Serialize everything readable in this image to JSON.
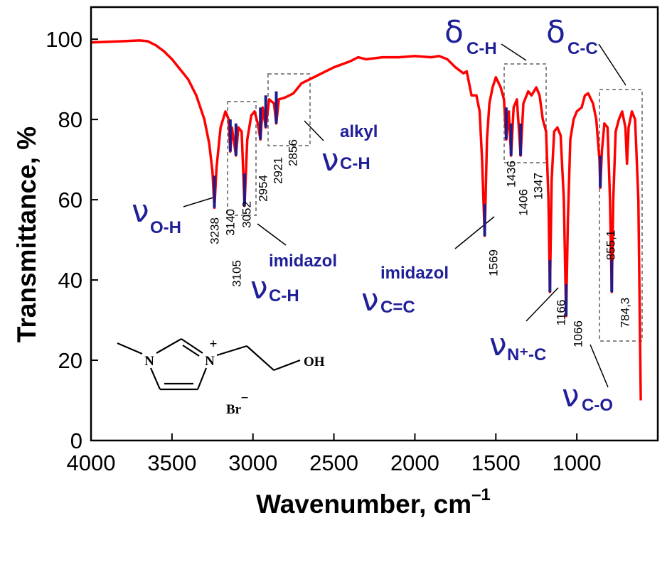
{
  "chart_data": {
    "type": "line",
    "ylabel": "Transmittance, %",
    "xlabel": "Wavenumber, cm",
    "xlabel_sup": "–1",
    "xlim": [
      4000,
      500
    ],
    "ylim": [
      0,
      108
    ],
    "xticks": [
      4000,
      3500,
      3000,
      2500,
      2000,
      1500,
      1000
    ],
    "yticks": [
      0,
      20,
      40,
      60,
      80,
      100
    ],
    "color": "#ff0000",
    "marker_color": "#1c1c8c",
    "x": [
      4000,
      3800,
      3700,
      3650,
      3600,
      3550,
      3500,
      3450,
      3400,
      3350,
      3300,
      3270,
      3250,
      3238,
      3225,
      3200,
      3170,
      3150,
      3140,
      3130,
      3105,
      3090,
      3070,
      3052,
      3035,
      3010,
      2990,
      2970,
      2954,
      2940,
      2921,
      2900,
      2870,
      2856,
      2840,
      2800,
      2750,
      2700,
      2600,
      2500,
      2400,
      2350,
      2300,
      2200,
      2100,
      2000,
      1900,
      1850,
      1800,
      1750,
      1700,
      1680,
      1650,
      1620,
      1600,
      1585,
      1569,
      1555,
      1540,
      1520,
      1500,
      1470,
      1450,
      1436,
      1420,
      1406,
      1390,
      1370,
      1347,
      1330,
      1300,
      1280,
      1250,
      1230,
      1210,
      1190,
      1175,
      1166,
      1155,
      1140,
      1120,
      1100,
      1080,
      1066,
      1055,
      1040,
      1020,
      1000,
      970,
      950,
      930,
      900,
      880,
      860,
      855.1,
      845,
      830,
      810,
      795,
      784.3,
      775,
      760,
      740,
      720,
      700,
      690,
      680,
      660,
      640,
      620,
      605
    ],
    "values": [
      99.2,
      99.5,
      99.7,
      99.5,
      98.5,
      97,
      95,
      92.5,
      90,
      86,
      80,
      74,
      67,
      58,
      68,
      78,
      82,
      80,
      72,
      78,
      71,
      78,
      77,
      58.5,
      75,
      81,
      82,
      79,
      75,
      83,
      78,
      85,
      84,
      79,
      85,
      85.5,
      86.5,
      89,
      91,
      93,
      94.5,
      95.5,
      95,
      95.5,
      95.5,
      95.8,
      95.5,
      95.8,
      95,
      93,
      91.5,
      92,
      86,
      86,
      82,
      70,
      51,
      75,
      84,
      88,
      90.5,
      88,
      85,
      75,
      82,
      71,
      83,
      85,
      71,
      84,
      87,
      86,
      88,
      86,
      80,
      77,
      60,
      37,
      65,
      77,
      78,
      76,
      60,
      31,
      55,
      75,
      80,
      82,
      83,
      86,
      86.5,
      84,
      80,
      70,
      63,
      72,
      79,
      78,
      60,
      37,
      60,
      77,
      80,
      82,
      78,
      69,
      78,
      82,
      80,
      60,
      10
    ],
    "peaks": [
      {
        "x": 3238,
        "label": "3238"
      },
      {
        "x": 3140,
        "label": "3140"
      },
      {
        "x": 3105,
        "label": "3105"
      },
      {
        "x": 3052,
        "label": "3052"
      },
      {
        "x": 2954,
        "label": "2954"
      },
      {
        "x": 2921,
        "label": "2921"
      },
      {
        "x": 2856,
        "label": "2856"
      },
      {
        "x": 1569,
        "label": "1569"
      },
      {
        "x": 1436,
        "label": "1436"
      },
      {
        "x": 1406,
        "label": "1406"
      },
      {
        "x": 1347,
        "label": "1347"
      },
      {
        "x": 1166,
        "label": "1166"
      },
      {
        "x": 1066,
        "label": "1066"
      },
      {
        "x": 855.1,
        "label": "855,1"
      },
      {
        "x": 784.3,
        "label": "784,3"
      }
    ],
    "annotations": [
      {
        "symbol": "ν",
        "sub": "O-H"
      },
      {
        "symbol": "ν",
        "sub": "C-H",
        "sup": "imidazol"
      },
      {
        "symbol": "ν",
        "sub": "C-H",
        "sup": "alkyl"
      },
      {
        "symbol": "ν",
        "sub": "C=C",
        "sup": "imidazol"
      },
      {
        "symbol": "δ",
        "sub": "C-H"
      },
      {
        "symbol": "δ",
        "sub": "C-C"
      },
      {
        "symbol": "ν",
        "sub": "N⁺-C"
      },
      {
        "symbol": "ν",
        "sub": "C-O"
      }
    ],
    "structure": {
      "atoms": [
        "N",
        "N",
        "OH",
        "Br"
      ],
      "charges": [
        "+",
        "−"
      ]
    }
  }
}
